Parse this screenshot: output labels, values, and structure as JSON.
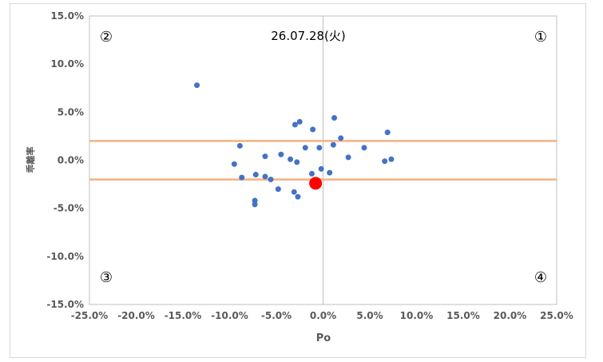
{
  "chart_data": {
    "type": "scatter",
    "title": "26.07.28(火)",
    "xlabel": "Po",
    "ylabel": "乖離率",
    "xlim": [
      -0.25,
      0.25
    ],
    "ylim": [
      -0.15,
      0.15
    ],
    "x_ticks": [
      -0.25,
      -0.2,
      -0.15,
      -0.1,
      -0.05,
      0,
      0.05,
      0.1,
      0.15,
      0.2,
      0.25
    ],
    "y_ticks": [
      -0.15,
      -0.1,
      -0.05,
      0,
      0.05,
      0.1,
      0.15
    ],
    "x_tick_labels": [
      "-25.0%",
      "-20.0%",
      "-15.0%",
      "-10.0%",
      "-5.0%",
      "0.0%",
      "5.0%",
      "10.0%",
      "15.0%",
      "20.0%",
      "25.0%"
    ],
    "y_tick_labels": [
      "-15.0%",
      "-10.0%",
      "-5.0%",
      "0.0%",
      "5.0%",
      "10.0%",
      "15.0%"
    ],
    "grid": false,
    "quadrant_labels": [
      "①",
      "②",
      "③",
      "④"
    ],
    "reference_lines": [
      0.02,
      -0.02
    ],
    "colors": {
      "points": "#4472c4",
      "highlight": "#ff0000",
      "bands": "#f4b183",
      "axes": "#bfbfbf"
    },
    "points": [
      {
        "x": -0.135,
        "y": 0.078
      },
      {
        "x": -0.089,
        "y": 0.015
      },
      {
        "x": -0.095,
        "y": -0.004
      },
      {
        "x": -0.087,
        "y": -0.018
      },
      {
        "x": -0.072,
        "y": -0.015
      },
      {
        "x": -0.073,
        "y": -0.042
      },
      {
        "x": -0.073,
        "y": -0.046
      },
      {
        "x": -0.062,
        "y": 0.004
      },
      {
        "x": -0.062,
        "y": -0.017
      },
      {
        "x": -0.056,
        "y": -0.02
      },
      {
        "x": -0.048,
        "y": -0.03
      },
      {
        "x": -0.045,
        "y": 0.006
      },
      {
        "x": -0.035,
        "y": 0.001
      },
      {
        "x": -0.031,
        "y": -0.033
      },
      {
        "x": -0.03,
        "y": 0.037
      },
      {
        "x": -0.028,
        "y": -0.002
      },
      {
        "x": -0.027,
        "y": -0.038
      },
      {
        "x": -0.025,
        "y": 0.04
      },
      {
        "x": -0.019,
        "y": 0.013
      },
      {
        "x": -0.011,
        "y": 0.032
      },
      {
        "x": -0.012,
        "y": -0.014
      },
      {
        "x": -0.004,
        "y": 0.013
      },
      {
        "x": -0.002,
        "y": -0.009
      },
      {
        "x": 0.007,
        "y": -0.013
      },
      {
        "x": 0.011,
        "y": 0.016
      },
      {
        "x": 0.012,
        "y": 0.044
      },
      {
        "x": 0.019,
        "y": 0.023
      },
      {
        "x": 0.027,
        "y": 0.003
      },
      {
        "x": 0.044,
        "y": 0.013
      },
      {
        "x": 0.066,
        "y": -0.001
      },
      {
        "x": 0.069,
        "y": 0.029
      },
      {
        "x": 0.073,
        "y": 0.001
      }
    ],
    "highlight_point": {
      "x": -0.008,
      "y": -0.024
    }
  }
}
